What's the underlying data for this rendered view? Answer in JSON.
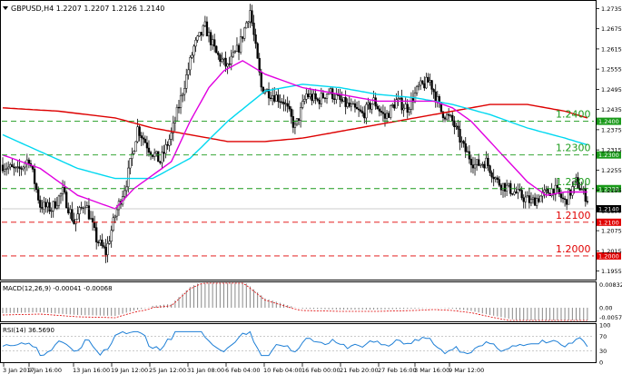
{
  "header": {
    "symbol_info": "GBPUSD,H4  1.2207 1.2207 1.2126 1.2140"
  },
  "macd": {
    "label": "MACD(12,26,9) -0.00041 -0.00068",
    "ticks": [
      "0.00832",
      "0.00",
      "-0.00573"
    ]
  },
  "rsi": {
    "label": "RSI(14) 36.5690",
    "ticks": [
      "100",
      "70",
      "30",
      "0"
    ]
  },
  "colors": {
    "ma_fast": "#e000e0",
    "ma_mid": "#00d8f0",
    "ma_slow": "#dd0000",
    "macd_signal": "#dd0000",
    "macd_hist": "#888888",
    "rsi_line": "#1e7fd6",
    "support_green": "#1a9a1a",
    "support_red": "#e00000",
    "price_label_bg": "#000000"
  },
  "chart_data": {
    "type": "candlestick",
    "x_labels": [
      "3 Jan 2017",
      "9 Jan 16:00",
      "13 Jan 16:00",
      "19 Jan 12:00",
      "25 Jan 12:00",
      "31 Jan 08:00",
      "6 Feb 04:00",
      "10 Feb 04:00",
      "16 Feb 00:00",
      "21 Feb 20:00",
      "27 Feb 16:00",
      "3 Mar 16:00",
      "9 Mar 12:00"
    ],
    "y_ticks": [
      "1.2735",
      "1.2675",
      "1.2615",
      "1.2555",
      "1.2495",
      "1.2435",
      "1.2375",
      "1.2315",
      "1.2255",
      "1.2195",
      "1.2135",
      "1.2075",
      "1.2015",
      "1.1955"
    ],
    "ylim": [
      1.1935,
      1.2755
    ],
    "last_price": "1.2140",
    "levels": [
      {
        "value": 1.24,
        "label": "1.2400",
        "tag": "1.2400",
        "kind": "green"
      },
      {
        "value": 1.23,
        "label": "1.2300",
        "tag": "1.2300",
        "kind": "green"
      },
      {
        "value": 1.22,
        "label": "1.2200",
        "tag": "1.2200",
        "kind": "green"
      },
      {
        "value": 1.21,
        "label": "1.2100",
        "tag": "1.2100",
        "kind": "red"
      },
      {
        "value": 1.2,
        "label": "1.2000",
        "tag": "1.2000",
        "kind": "red"
      }
    ],
    "path_anchors": [
      [
        0,
        1.227
      ],
      [
        8,
        1.225
      ],
      [
        14,
        1.229
      ],
      [
        20,
        1.215
      ],
      [
        26,
        1.214
      ],
      [
        32,
        1.219
      ],
      [
        38,
        1.21
      ],
      [
        44,
        1.216
      ],
      [
        50,
        1.205
      ],
      [
        55,
        1.201
      ],
      [
        60,
        1.212
      ],
      [
        66,
        1.222
      ],
      [
        72,
        1.238
      ],
      [
        78,
        1.232
      ],
      [
        84,
        1.228
      ],
      [
        90,
        1.236
      ],
      [
        96,
        1.249
      ],
      [
        102,
        1.262
      ],
      [
        108,
        1.268
      ],
      [
        114,
        1.26
      ],
      [
        120,
        1.256
      ],
      [
        126,
        1.262
      ],
      [
        132,
        1.273
      ],
      [
        138,
        1.25
      ],
      [
        144,
        1.248
      ],
      [
        150,
        1.246
      ],
      [
        156,
        1.238
      ],
      [
        162,
        1.248
      ],
      [
        168,
        1.246
      ],
      [
        174,
        1.249
      ],
      [
        180,
        1.246
      ],
      [
        186,
        1.244
      ],
      [
        192,
        1.242
      ],
      [
        198,
        1.246
      ],
      [
        204,
        1.241
      ],
      [
        210,
        1.246
      ],
      [
        216,
        1.244
      ],
      [
        222,
        1.25
      ],
      [
        228,
        1.252
      ],
      [
        234,
        1.243
      ],
      [
        240,
        1.24
      ],
      [
        246,
        1.232
      ],
      [
        252,
        1.227
      ],
      [
        258,
        1.228
      ],
      [
        264,
        1.222
      ],
      [
        270,
        1.22
      ],
      [
        276,
        1.218
      ],
      [
        282,
        1.216
      ],
      [
        288,
        1.218
      ],
      [
        294,
        1.22
      ],
      [
        300,
        1.216
      ],
      [
        306,
        1.222
      ],
      [
        312,
        1.217
      ]
    ],
    "candle_count": 315,
    "ma_fast": [
      [
        0,
        1.23
      ],
      [
        20,
        1.226
      ],
      [
        40,
        1.218
      ],
      [
        60,
        1.214
      ],
      [
        70,
        1.22
      ],
      [
        80,
        1.224
      ],
      [
        90,
        1.228
      ],
      [
        100,
        1.24
      ],
      [
        110,
        1.25
      ],
      [
        118,
        1.255
      ],
      [
        128,
        1.258
      ],
      [
        140,
        1.254
      ],
      [
        160,
        1.25
      ],
      [
        180,
        1.248
      ],
      [
        200,
        1.246
      ],
      [
        220,
        1.246
      ],
      [
        230,
        1.246
      ],
      [
        240,
        1.244
      ],
      [
        250,
        1.24
      ],
      [
        260,
        1.234
      ],
      [
        270,
        1.228
      ],
      [
        280,
        1.222
      ],
      [
        290,
        1.218
      ],
      [
        300,
        1.219
      ],
      [
        312,
        1.219
      ]
    ],
    "ma_mid": [
      [
        0,
        1.236
      ],
      [
        20,
        1.231
      ],
      [
        40,
        1.226
      ],
      [
        60,
        1.223
      ],
      [
        80,
        1.223
      ],
      [
        100,
        1.229
      ],
      [
        120,
        1.24
      ],
      [
        140,
        1.249
      ],
      [
        160,
        1.251
      ],
      [
        180,
        1.25
      ],
      [
        200,
        1.248
      ],
      [
        220,
        1.247
      ],
      [
        240,
        1.245
      ],
      [
        260,
        1.242
      ],
      [
        280,
        1.238
      ],
      [
        300,
        1.235
      ],
      [
        312,
        1.233
      ]
    ],
    "ma_slow": [
      [
        0,
        1.244
      ],
      [
        30,
        1.243
      ],
      [
        60,
        1.241
      ],
      [
        80,
        1.238
      ],
      [
        100,
        1.236
      ],
      [
        120,
        1.234
      ],
      [
        140,
        1.234
      ],
      [
        160,
        1.235
      ],
      [
        180,
        1.237
      ],
      [
        200,
        1.239
      ],
      [
        220,
        1.241
      ],
      [
        240,
        1.243
      ],
      [
        260,
        1.245
      ],
      [
        280,
        1.245
      ],
      [
        300,
        1.243
      ],
      [
        312,
        1.241
      ]
    ]
  }
}
